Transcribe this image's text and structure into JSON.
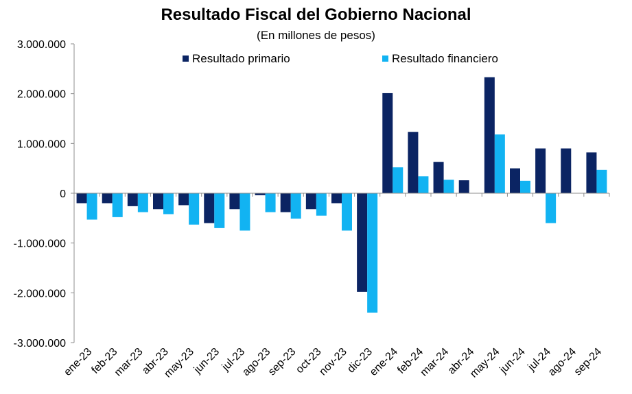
{
  "chart_data": {
    "type": "bar",
    "title": "Resultado Fiscal del Gobierno Nacional",
    "subtitle": "(En millones de pesos)",
    "categories": [
      "ene-23",
      "feb-23",
      "mar-23",
      "abr-23",
      "may-23",
      "jun-23",
      "jul-23",
      "ago-23",
      "sep-23",
      "oct-23",
      "nov-23",
      "dic-23",
      "ene-24",
      "feb-24",
      "mar-24",
      "abr-24",
      "may-24",
      "jun-24",
      "jul-24",
      "ago-24",
      "sep-24"
    ],
    "series": [
      {
        "name": "Resultado primario",
        "color": "#0b2463",
        "values": [
          -200000,
          -200000,
          -260000,
          -320000,
          -240000,
          -600000,
          -320000,
          -40000,
          -380000,
          -320000,
          -200000,
          -1980000,
          2010000,
          1230000,
          630000,
          260000,
          2330000,
          500000,
          900000,
          900000,
          820000
        ]
      },
      {
        "name": "Resultado financiero",
        "color": "#12b3f2",
        "values": [
          -530000,
          -480000,
          -380000,
          -420000,
          -630000,
          -700000,
          -750000,
          -380000,
          -510000,
          -450000,
          -750000,
          -2400000,
          520000,
          340000,
          270000,
          0,
          1180000,
          250000,
          -600000,
          0,
          470000
        ]
      }
    ],
    "y_ticks": [
      "3.000.000",
      "2.000.000",
      "1.000.000",
      "0",
      "-1.000.000",
      "-2.000.000",
      "-3.000.000"
    ],
    "ylim": [
      -3000000,
      3000000
    ],
    "legend_position": "top",
    "grid": false
  }
}
